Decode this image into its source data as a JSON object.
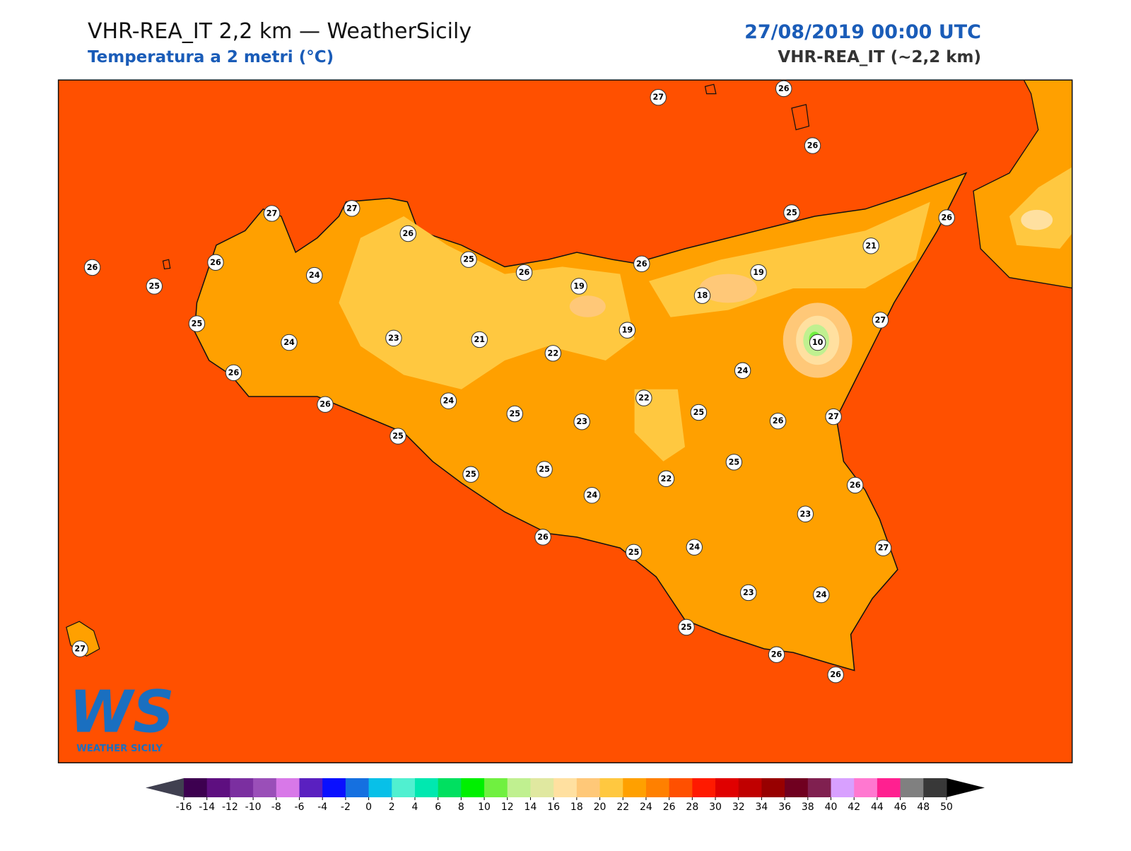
{
  "header": {
    "title": "VHR-REA_IT 2,2 km — WeatherSicily",
    "subtitle": "Temperatura a 2 metri (°C)",
    "date": "27/08/2019 00:00 UTC",
    "model": "VHR-REA_IT (~2,2 km)"
  },
  "stations": [
    27,
    26,
    26,
    27,
    27,
    26,
    26,
    24,
    26,
    25,
    25,
    26,
    19,
    26,
    25,
    26,
    21,
    19,
    18,
    27,
    25,
    24,
    23,
    21,
    22,
    19,
    10,
    26,
    24,
    26,
    24,
    22,
    25,
    26,
    27,
    25,
    23,
    25,
    25,
    25,
    25,
    22,
    26,
    24,
    23,
    26,
    25,
    24,
    27,
    23,
    24,
    25,
    26,
    26,
    27
  ],
  "logo": {
    "mark": "WS",
    "name": "WEATHER SICILY"
  },
  "colorbar": {
    "ticks": [
      -16,
      -14,
      -12,
      -10,
      -8,
      -6,
      -4,
      -2,
      0,
      2,
      4,
      6,
      8,
      10,
      12,
      14,
      16,
      18,
      20,
      22,
      24,
      26,
      28,
      30,
      32,
      34,
      36,
      38,
      40,
      42,
      44,
      46,
      48,
      50
    ],
    "colors": [
      "#3d0050",
      "#5e0f80",
      "#7b2fa0",
      "#9a4fb8",
      "#d878e8",
      "#5a20c0",
      "#0a10ff",
      "#1570e0",
      "#08c0e8",
      "#50f0d0",
      "#00e8b0",
      "#00e060",
      "#00f000",
      "#70f040",
      "#c0f090",
      "#e0e8a0",
      "#ffe0a0",
      "#ffc878",
      "#ffc840",
      "#ffa000",
      "#ff8000",
      "#ff5000",
      "#ff1a00",
      "#e00000",
      "#c00000",
      "#980000",
      "#700020",
      "#802050",
      "#d8a0ff",
      "#ff78d0",
      "#ff2090",
      "#808080",
      "#383838"
    ],
    "under_color": "#404050",
    "over_color": "#000000"
  }
}
